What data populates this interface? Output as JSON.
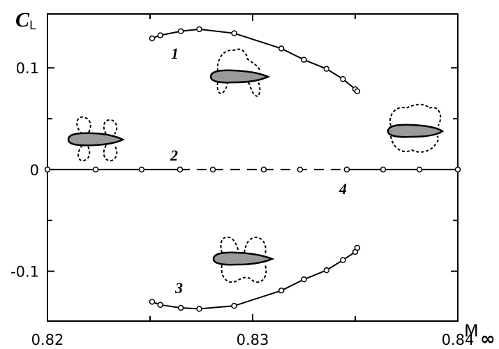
{
  "chart_data": {
    "type": "line",
    "ylabel": "C",
    "ylabel_sub": "L",
    "xlabel": "M",
    "xlabel_sub": "∞",
    "xlim": [
      0.82,
      0.84
    ],
    "xticks": [
      0.82,
      0.83,
      0.84
    ],
    "xminor": [
      0.825,
      0.835
    ],
    "ylim": [
      -0.149,
      0.153
    ],
    "yticks": [
      -0.1,
      0,
      0.1
    ],
    "yminor": [
      -0.05,
      0.05
    ],
    "color": "#000000",
    "series": [
      {
        "name": "1",
        "dash": false,
        "x": [
          0.8251,
          0.8255,
          0.8265,
          0.8274,
          0.8291,
          0.8314,
          0.8325,
          0.8336,
          0.8344,
          0.835,
          0.8351
        ],
        "values": [
          0.129,
          0.132,
          0.136,
          0.138,
          0.134,
          0.119,
          0.108,
          0.099,
          0.089,
          0.079,
          0.077
        ]
      },
      {
        "name": "2",
        "dash": false,
        "x": [
          0.82,
          0.82235,
          0.82459,
          0.82646
        ],
        "values": [
          0,
          0,
          0,
          0
        ]
      },
      {
        "dash": true,
        "x": [
          0.82646,
          0.82806,
          0.83054,
          0.83231,
          0.83459
        ],
        "values": [
          0,
          0,
          0,
          0,
          0
        ]
      },
      {
        "name": "4",
        "dash": false,
        "x": [
          0.83459,
          0.83636,
          0.83813,
          0.84
        ],
        "values": [
          0,
          0,
          0,
          0
        ]
      },
      {
        "name": "3",
        "dash": false,
        "x": [
          0.8251,
          0.8255,
          0.8265,
          0.8274,
          0.8291,
          0.8314,
          0.8325,
          0.8336,
          0.8344,
          0.835,
          0.8351
        ],
        "values": [
          -0.13,
          -0.133,
          -0.136,
          -0.137,
          -0.134,
          -0.119,
          -0.108,
          -0.099,
          -0.089,
          -0.081,
          -0.077
        ]
      }
    ]
  }
}
